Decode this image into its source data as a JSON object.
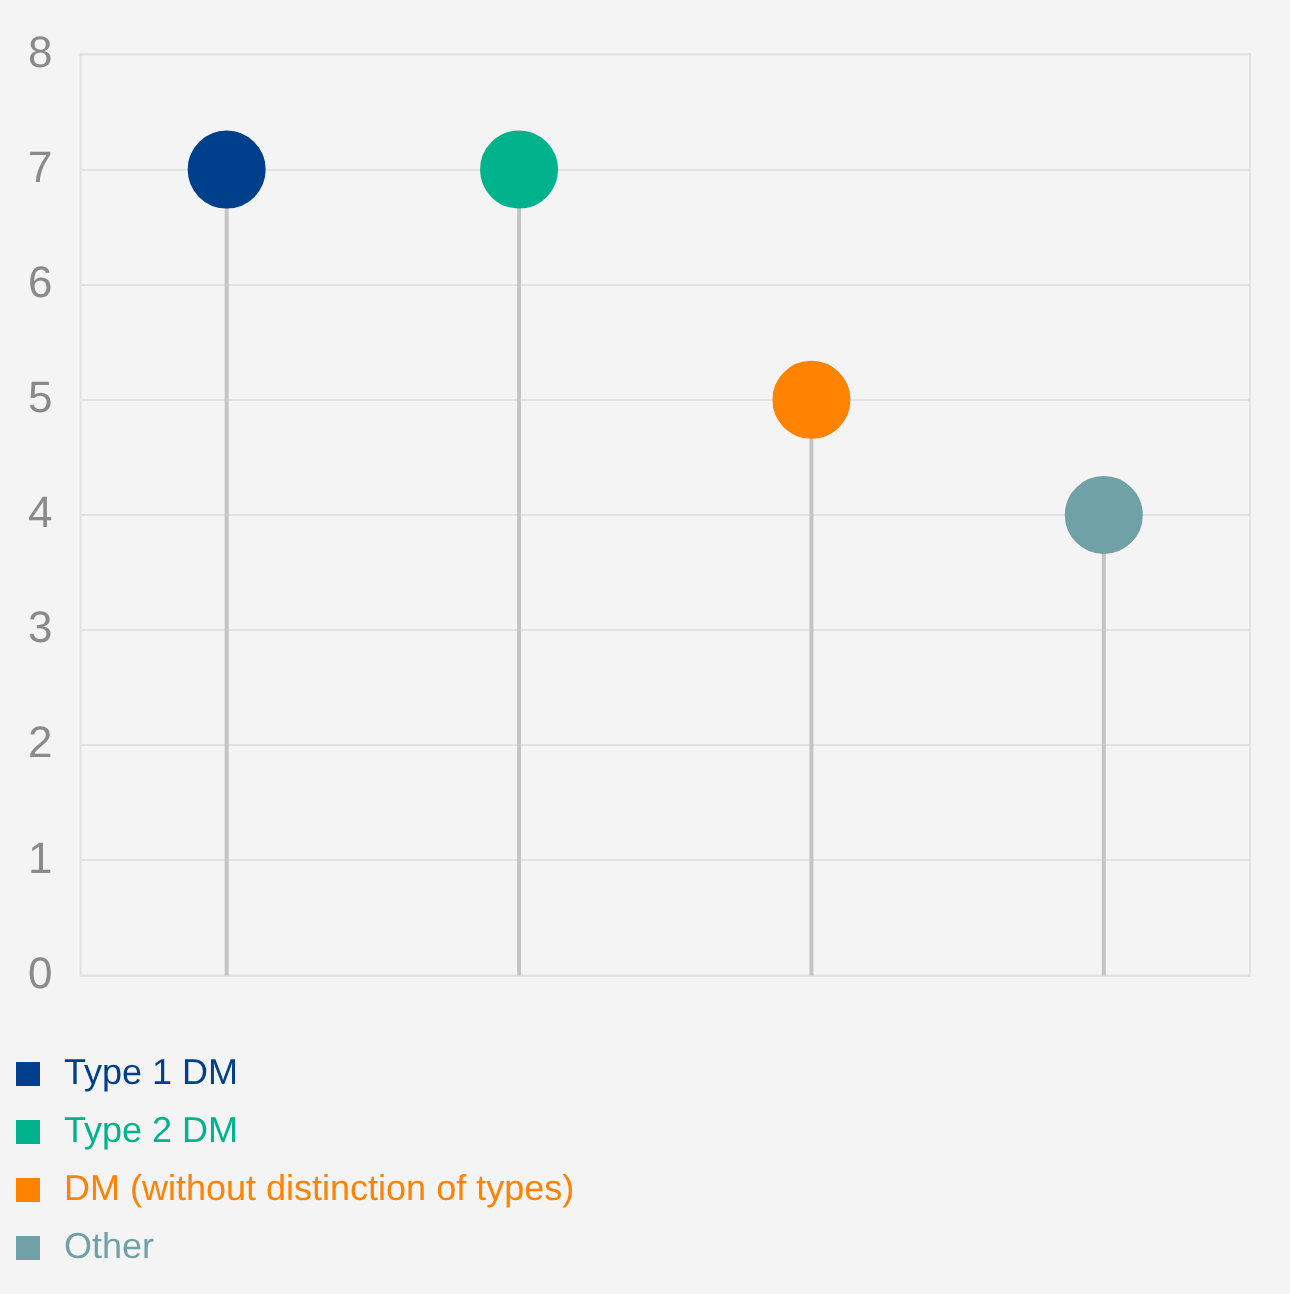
{
  "chart_data": {
    "type": "lollipop",
    "categories": [
      null,
      null,
      null,
      null
    ],
    "series": [
      {
        "name": "Type 1 DM",
        "color": "#003f8c",
        "values": [
          7,
          null,
          null,
          null
        ]
      },
      {
        "name": "Type 2 DM",
        "color": "#00b38c",
        "values": [
          null,
          7,
          null,
          null
        ]
      },
      {
        "name": "DM (without distinction of types)",
        "color": "#ff8200",
        "values": [
          null,
          null,
          5,
          null
        ]
      },
      {
        "name": "Other",
        "color": "#6fa1a6",
        "values": [
          null,
          null,
          null,
          4
        ]
      }
    ],
    "ylim": [
      0,
      8
    ],
    "yticks": [
      0,
      1,
      2,
      3,
      4,
      5,
      6,
      7,
      8
    ],
    "grid": "y",
    "legend": "bottom",
    "marker": "circle"
  }
}
